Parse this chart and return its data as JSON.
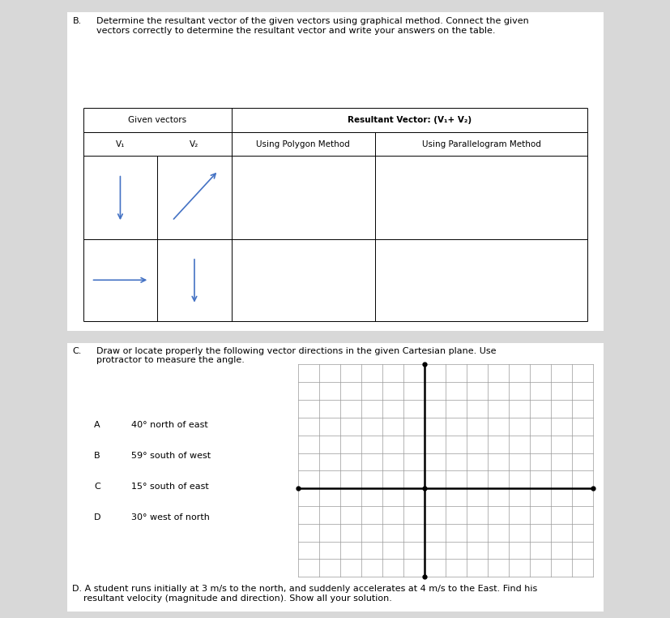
{
  "bg_color": "#d8d8d8",
  "page_bg": "#ffffff",
  "section_b_title_b": "B.",
  "section_b_title_text": "Determine the resultant vector of the given vectors using graphical method. Connect the given\nvectors correctly to determine the resultant vector and write your answers on the table.",
  "given_vectors_label": "Given vectors",
  "resultant_label": "Resultant Vector: (V₁+ V₂)",
  "v1_label": "V₁",
  "v2_label": "V₂",
  "polygon_label": "Using Polygon Method",
  "parallelogram_label": "Using Parallelogram Method",
  "arrow_color": "#4472C4",
  "section_c_title_c": "C.",
  "section_c_title_text": "Draw or locate properly the following vector directions in the given Cartesian plane. Use\nprotractor to measure the angle.",
  "directions": [
    [
      "A",
      "40° north of east"
    ],
    [
      "B",
      "59° south of west"
    ],
    [
      "C",
      "15° south of east"
    ],
    [
      "D",
      "30° west of north"
    ]
  ],
  "section_d_text": "D. A student runs initially at 3 m/s to the north, and suddenly accelerates at 4 m/s to the East. Find his\n    resultant velocity (magnitude and direction). Show all your solution.",
  "grid_color": "#999999",
  "axis_color": "#000000",
  "dot_color": "#000000",
  "n_cols": 14,
  "n_rows": 12,
  "axis_col_idx": 6,
  "axis_row_idx": 5
}
